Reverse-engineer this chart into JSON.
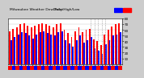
{
  "title_left": "Milwaukee Weather Dew Point",
  "title_right": "Daily High/Low",
  "background_color": "#cccccc",
  "plot_bg": "#ffffff",
  "days": [
    1,
    2,
    3,
    4,
    5,
    6,
    7,
    8,
    9,
    10,
    11,
    12,
    13,
    14,
    15,
    16,
    17,
    18,
    19,
    20,
    21,
    22,
    23,
    24,
    25,
    26,
    27,
    28,
    29,
    30,
    31
  ],
  "high_vals": [
    58,
    62,
    65,
    70,
    72,
    68,
    65,
    68,
    70,
    72,
    70,
    68,
    65,
    70,
    72,
    60,
    54,
    48,
    58,
    65,
    56,
    60,
    62,
    44,
    40,
    34,
    52,
    60,
    66,
    70,
    72
  ],
  "low_vals": [
    42,
    48,
    52,
    56,
    55,
    50,
    45,
    52,
    56,
    58,
    55,
    52,
    50,
    56,
    58,
    42,
    36,
    30,
    42,
    50,
    38,
    42,
    48,
    28,
    24,
    18,
    35,
    42,
    50,
    52,
    56
  ],
  "dashed_cols": [
    23,
    24,
    25,
    26,
    27
  ],
  "high_color": "#ff0000",
  "low_color": "#0000ff",
  "ylim": [
    0,
    80
  ],
  "yticks": [
    10,
    20,
    30,
    40,
    50,
    60,
    70,
    80
  ],
  "yticklabels": [
    "10",
    "20",
    "30",
    "40",
    "50",
    "60",
    "70",
    "80"
  ]
}
